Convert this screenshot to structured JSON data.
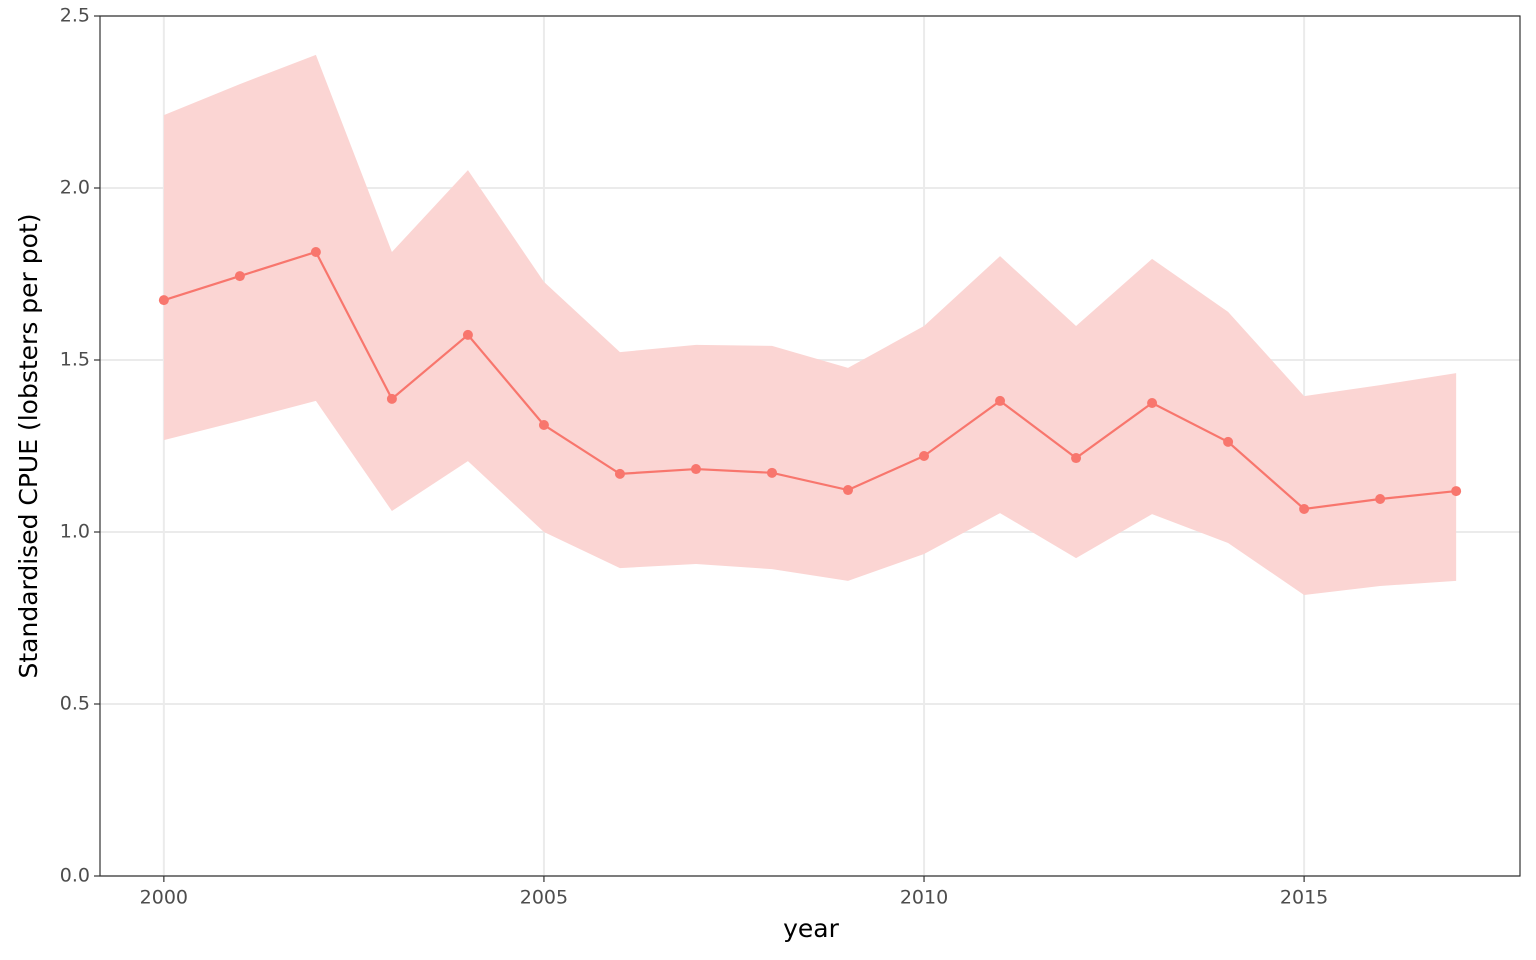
{
  "chart_data": {
    "type": "line",
    "x_label": "year",
    "y_label": "Standardised CPUE (lobsters per pot)",
    "x": [
      2000,
      2001,
      2002,
      2003,
      2004,
      2005,
      2006,
      2007,
      2008,
      2009,
      2010,
      2011,
      2012,
      2013,
      2014,
      2015,
      2016,
      2017
    ],
    "series": [
      {
        "color": "#f8766d",
        "ribbon_color": "#fbd5d3",
        "values": [
          1.674,
          1.744,
          1.814,
          1.387,
          1.573,
          1.311,
          1.169,
          1.183,
          1.172,
          1.122,
          1.221,
          1.381,
          1.215,
          1.375,
          1.262,
          1.067,
          1.096,
          1.119
        ],
        "upper": [
          2.212,
          2.302,
          2.387,
          1.814,
          2.052,
          1.727,
          1.523,
          1.544,
          1.541,
          1.477,
          1.599,
          1.802,
          1.599,
          1.794,
          1.64,
          1.395,
          1.427,
          1.462
        ],
        "lower": [
          1.267,
          1.323,
          1.381,
          1.061,
          1.206,
          1.0,
          0.895,
          0.907,
          0.892,
          0.858,
          0.936,
          1.055,
          0.924,
          1.052,
          0.968,
          0.817,
          0.843,
          0.858
        ]
      }
    ],
    "xlim": [
      1999.16,
      2017.84
    ],
    "xticks": [
      2000,
      2005,
      2010,
      2015
    ],
    "ylim": [
      0,
      2.5
    ],
    "yticks": [
      {
        "value": 0,
        "label": "0.0"
      },
      {
        "value": 0.5,
        "label": "0.5"
      },
      {
        "value": 1,
        "label": "1.0"
      },
      {
        "value": 1.5,
        "label": "1.5"
      },
      {
        "value": 2,
        "label": "2.0"
      },
      {
        "value": 2.5,
        "label": "2.5"
      }
    ],
    "grid": true
  }
}
